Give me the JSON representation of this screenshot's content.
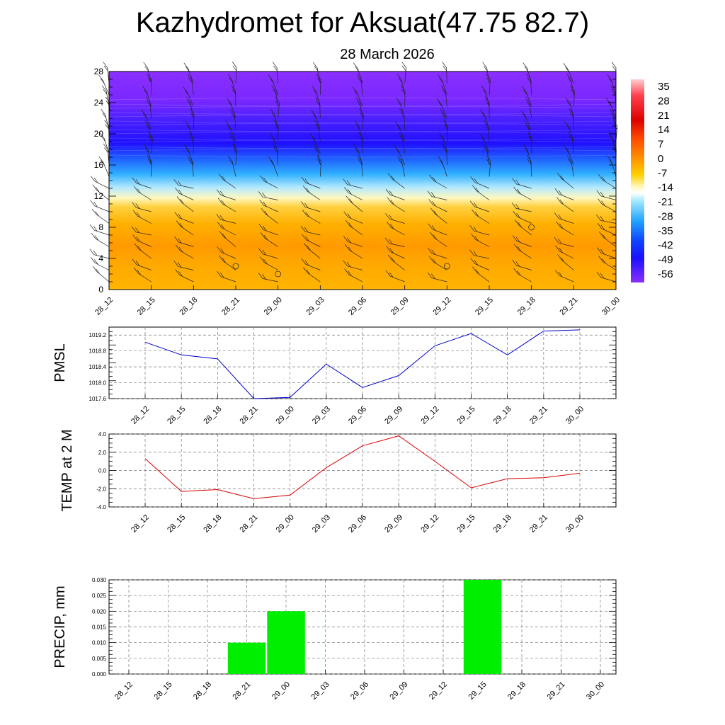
{
  "header": {
    "title": "Kazhydromet for Aksuat(47.75 82.7)",
    "subtitle": "28 March 2026"
  },
  "chart_data": [
    {
      "type": "heatmap",
      "name": "temperature-cross-section",
      "title": "",
      "ylim": [
        0,
        28
      ],
      "y_ticks": [
        0,
        4,
        8,
        12,
        16,
        20,
        24,
        28
      ],
      "categories": [
        "28_12",
        "28_15",
        "28_18",
        "28_21",
        "29_00",
        "29_03",
        "29_06",
        "29_09",
        "29_12",
        "29_15",
        "29_18",
        "29_21",
        "30_00"
      ],
      "colorbar_labels": [
        "35",
        "28",
        "21",
        "14",
        "7",
        "0",
        "-7",
        "-14",
        "-21",
        "-28",
        "-35",
        "-42",
        "-49",
        "-56"
      ],
      "colors": {
        "warm": "#ffb000",
        "warm_mid": "#ff9500",
        "cold": "#1f10ff",
        "coldest": "#8a2fff",
        "mid": "#fff0a0",
        "cool": "#40c0ff"
      },
      "calm_circles": [
        {
          "x": "28_21",
          "y": 3
        },
        {
          "x": "29_00",
          "y": 2
        },
        {
          "x": "29_12",
          "y": 3
        },
        {
          "x": "29_18",
          "y": 8
        }
      ]
    },
    {
      "type": "line",
      "name": "pmsl",
      "ylabel": "PMSL",
      "ylim": [
        1017.6,
        1019.4
      ],
      "y_ticks": [
        "1017.6",
        "1018.0",
        "1018.4",
        "1018.8",
        "1019.2"
      ],
      "categories": [
        "28_12",
        "28_15",
        "28_18",
        "28_21",
        "29_00",
        "29_03",
        "29_06",
        "29_09",
        "29_12",
        "29_15",
        "29_18",
        "29_21",
        "30_00"
      ],
      "values": [
        1019.02,
        1018.7,
        1018.6,
        1017.6,
        1017.63,
        1018.47,
        1017.88,
        1018.18,
        1018.93,
        1019.24,
        1018.7,
        1019.3,
        1019.33
      ],
      "color": "#0000cc"
    },
    {
      "type": "line",
      "name": "temp-2m",
      "ylabel": "TEMP at 2 M",
      "ylim": [
        -4.0,
        4.0
      ],
      "y_ticks": [
        "-4.0",
        "-2.0",
        "0.0",
        "2.0",
        "4.0"
      ],
      "categories": [
        "28_12",
        "28_15",
        "28_18",
        "28_21",
        "29_00",
        "29_03",
        "29_06",
        "29_09",
        "29_12",
        "29_15",
        "29_18",
        "29_21",
        "30_00"
      ],
      "values": [
        1.3,
        -2.3,
        -2.1,
        -3.1,
        -2.7,
        0.3,
        2.7,
        3.8,
        1.0,
        -1.9,
        -0.9,
        -0.8,
        -0.3
      ],
      "color": "#dd0000"
    },
    {
      "type": "bar",
      "name": "precip",
      "ylabel": "PRECIP, mm",
      "ylim": [
        0,
        0.03
      ],
      "y_ticks": [
        "0.000",
        "0.005",
        "0.010",
        "0.015",
        "0.020",
        "0.025",
        "0.030"
      ],
      "categories": [
        "28_12",
        "28_15",
        "28_18",
        "28_21",
        "29_00",
        "29_03",
        "29_06",
        "29_09",
        "29_12",
        "29_15",
        "29_18",
        "29_21",
        "30_00"
      ],
      "values": [
        0,
        0,
        0,
        0.01,
        0.02,
        0,
        0,
        0,
        0,
        0.03,
        0,
        0,
        0
      ],
      "color": "#00ee00"
    }
  ]
}
